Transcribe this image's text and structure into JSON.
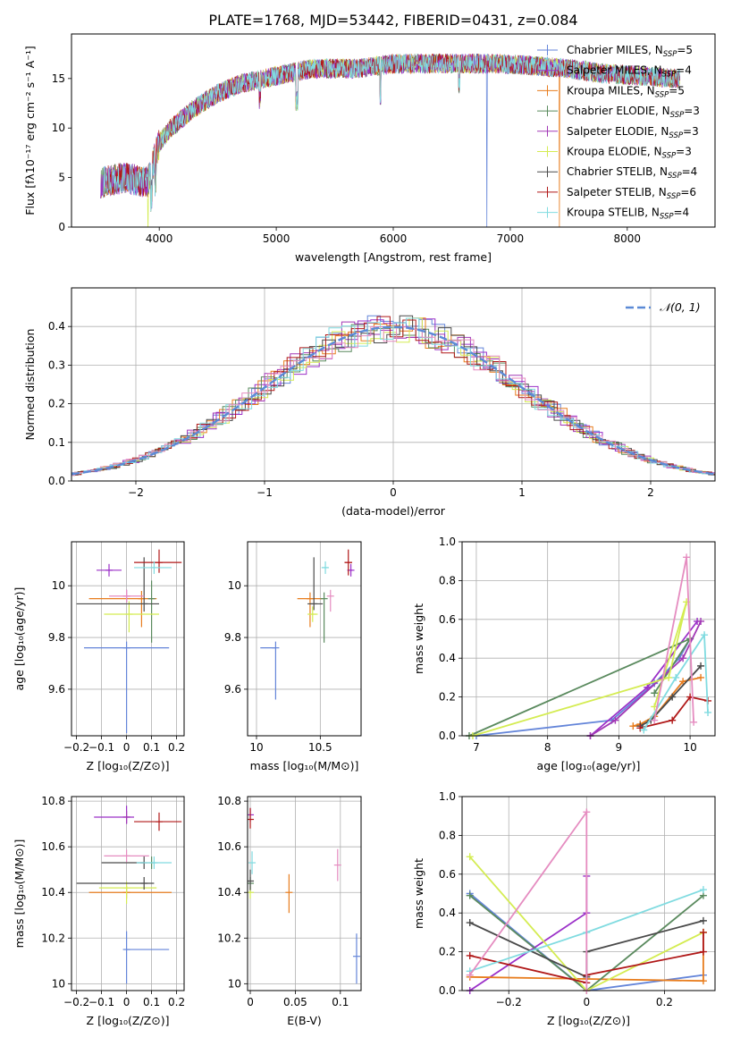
{
  "page_title": "PLATE=1768, MJD=53442, FIBERID=0431, z=0.084",
  "colors": {
    "Chabrier MILES": "#6485d9",
    "Salpeter MILES": "#9b30c8",
    "Kroupa MILES": "#e87d1e",
    "Chabrier ELODIE": "#5a8a5e",
    "Salpeter ELODIE": "#a238b5",
    "Kroupa ELODIE": "#d4ec52",
    "Chabrier STELIB": "#4a4a4a",
    "Salpeter STELIB": "#b01818",
    "Kroupa STELIB": "#80dbe0",
    "pink": "#e58cc0",
    "gaussian": "#5b8ad6"
  },
  "chart_data": [
    {
      "id": "spectrum",
      "type": "line",
      "title": "PLATE=1768, MJD=53442, FIBERID=0431, z=0.084",
      "xlabel": "wavelength [Angstrom, rest frame]",
      "ylabel": "Flux [fλ10⁻¹⁷ erg cm⁻² s⁻¹ A⁻¹]",
      "xlim": [
        3250,
        8750
      ],
      "ylim": [
        0,
        19.5
      ],
      "xticks": [
        4000,
        5000,
        6000,
        7000,
        8000
      ],
      "yticks": [
        0,
        5,
        10,
        15
      ],
      "legend_position": "right",
      "series": [
        {
          "name": "Chabrier MILES, N_SSP=5"
        },
        {
          "name": "Salpeter MILES, N_SSP=4"
        },
        {
          "name": "Kroupa MILES, N_SSP=5"
        },
        {
          "name": "Chabrier ELODIE, N_SSP=3"
        },
        {
          "name": "Salpeter ELODIE, N_SSP=3"
        },
        {
          "name": "Kroupa ELODIE, N_SSP=3"
        },
        {
          "name": "Chabrier STELIB, N_SSP=4"
        },
        {
          "name": "Salpeter STELIB, N_SSP=6"
        },
        {
          "name": "Kroupa STELIB, N_SSP=4"
        }
      ],
      "continuum": {
        "wavelength": [
          3500,
          3700,
          3900,
          4000,
          4100,
          4300,
          4500,
          4700,
          4900,
          5100,
          5300,
          5500,
          5700,
          6000,
          6300,
          6600,
          6900,
          7200,
          7500,
          7800,
          8100,
          8400
        ],
        "flux": [
          4.5,
          5.0,
          4.5,
          8.5,
          10.0,
          12.0,
          13.5,
          14.5,
          15.0,
          15.5,
          16.0,
          16.0,
          16.0,
          16.5,
          16.5,
          16.5,
          16.5,
          16.3,
          16.0,
          15.5,
          15.3,
          15.0
        ]
      }
    },
    {
      "id": "residuals",
      "type": "histogram",
      "xlabel": "(data-model)/error",
      "ylabel": "Normed distribution",
      "xlim": [
        -2.5,
        2.5
      ],
      "ylim": [
        0,
        0.5
      ],
      "xticks": [
        -2,
        -1,
        0,
        1,
        2
      ],
      "yticks": [
        0.0,
        0.1,
        0.2,
        0.3,
        0.4
      ],
      "legend": "𝒩(0, 1)",
      "legend_position": "top-right",
      "grid": true
    },
    {
      "id": "age_vs_Z",
      "type": "errorbar",
      "xlabel": "Z [log₁₀(Z/Z⊙)]",
      "ylabel": "age  [log₁₀(age/yr)]",
      "xlim": [
        -0.22,
        0.23
      ],
      "ylim": [
        9.42,
        10.17
      ],
      "xticks": [
        -0.2,
        -0.1,
        0.0,
        0.1,
        0.2
      ],
      "yticks": [
        9.6,
        9.8,
        10.0
      ],
      "grid": true,
      "points": [
        {
          "series": "Chabrier MILES",
          "x": 0.0,
          "y": 9.76,
          "xerr": [
            0.17,
            0.17
          ],
          "yerr": [
            0.33,
            0.02
          ]
        },
        {
          "series": "Salpeter MILES",
          "x": -0.07,
          "y": 10.06,
          "xerr": [
            0.05,
            0.05
          ],
          "yerr": [
            0.0,
            0.0
          ]
        },
        {
          "series": "Kroupa MILES",
          "x": 0.06,
          "y": 9.95,
          "xerr": [
            0.21,
            0.06
          ],
          "yerr": [
            0.11,
            0.03
          ]
        },
        {
          "series": "Chabrier ELODIE",
          "x": 0.1,
          "y": 9.95,
          "xerr": [
            0.0,
            0.0
          ],
          "yerr": [
            0.17,
            0.07
          ]
        },
        {
          "series": "Salpeter ELODIE",
          "x": 0.0,
          "y": 9.96,
          "xerr": [
            0.0,
            0.0
          ],
          "yerr": [
            0.0,
            0.0
          ]
        },
        {
          "series": "Kroupa ELODIE",
          "x": 0.01,
          "y": 9.89,
          "xerr": [
            0.1,
            0.12
          ],
          "yerr": [
            0.07,
            0.05
          ]
        },
        {
          "series": "Chabrier STELIB",
          "x": 0.07,
          "y": 9.93,
          "xerr": [
            0.27,
            0.06
          ],
          "yerr": [
            0.03,
            0.18
          ]
        },
        {
          "series": "Salpeter STELIB",
          "x": 0.13,
          "y": 10.09,
          "xerr": [
            0.1,
            0.09
          ],
          "yerr": [
            0.04,
            0.05
          ]
        },
        {
          "series": "Kroupa STELIB",
          "x": 0.11,
          "y": 10.07,
          "xerr": [
            0.08,
            0.07
          ],
          "yerr": [
            0.0,
            0.0
          ]
        },
        {
          "series": "pink",
          "x": 0.0,
          "y": 9.96,
          "xerr": [
            0.07,
            0.07
          ],
          "yerr": [
            0.0,
            0.0
          ]
        }
      ]
    },
    {
      "id": "age_vs_mass",
      "type": "errorbar",
      "xlabel": "mass [log₁₀(M/M⊙)]",
      "xlim": [
        9.93,
        10.82
      ],
      "ylim": [
        9.42,
        10.17
      ],
      "xticks": [
        10.0,
        10.5
      ],
      "yticks": [
        9.6,
        9.8,
        10.0
      ],
      "grid": true,
      "points": [
        {
          "series": "Chabrier MILES",
          "x": 10.15,
          "y": 9.76,
          "xerr": [
            0.12,
            0.0
          ],
          "yerr": [
            0.2,
            0.02
          ]
        },
        {
          "series": "Salpeter MILES",
          "x": 10.74,
          "y": 10.06,
          "xerr": [
            0.01,
            0.01
          ],
          "yerr": [
            0.0,
            0.0
          ]
        },
        {
          "series": "Kroupa MILES",
          "x": 10.42,
          "y": 9.95,
          "xerr": [
            0.1,
            0.1
          ],
          "yerr": [
            0.11,
            0.0
          ]
        },
        {
          "series": "Chabrier ELODIE",
          "x": 10.53,
          "y": 9.95,
          "xerr": [
            0.0,
            0.0
          ],
          "yerr": [
            0.17,
            0.0
          ]
        },
        {
          "series": "Kroupa ELODIE",
          "x": 10.44,
          "y": 9.89,
          "xerr": [
            0.04,
            0.04
          ],
          "yerr": [
            0.03,
            0.03
          ]
        },
        {
          "series": "Chabrier STELIB",
          "x": 10.45,
          "y": 9.93,
          "xerr": [
            0.05,
            0.07
          ],
          "yerr": [
            0.0,
            0.18
          ]
        },
        {
          "series": "Salpeter STELIB",
          "x": 10.72,
          "y": 10.09,
          "xerr": [
            0.03,
            0.03
          ],
          "yerr": [
            0.05,
            0.05
          ]
        },
        {
          "series": "Kroupa STELIB",
          "x": 10.54,
          "y": 10.07,
          "xerr": [
            0.03,
            0.02
          ],
          "yerr": [
            0.0,
            0.0
          ]
        },
        {
          "series": "pink",
          "x": 10.58,
          "y": 9.96,
          "xerr": [
            0.0,
            0.0
          ],
          "yerr": [
            0.06,
            0.0
          ]
        }
      ]
    },
    {
      "id": "weight_vs_age",
      "type": "line",
      "xlabel": "age  [log₁₀(age/yr)]",
      "ylabel": "mass weight",
      "xlim": [
        6.8,
        10.35
      ],
      "ylim": [
        0,
        1.0
      ],
      "xticks": [
        7,
        8,
        9,
        10
      ],
      "yticks": [
        0.0,
        0.2,
        0.4,
        0.6,
        0.8,
        1.0
      ],
      "grid": true,
      "series": [
        {
          "series": "Chabrier MILES",
          "x": [
            7.0,
            8.9,
            9.5,
            9.85,
            10.0
          ],
          "y": [
            0.0,
            0.08,
            0.27,
            0.4,
            0.5
          ]
        },
        {
          "series": "Salpeter MILES",
          "x": [
            8.6,
            9.4,
            10.1
          ],
          "y": [
            0.0,
            0.25,
            0.59
          ]
        },
        {
          "series": "Kroupa MILES",
          "x": [
            9.2,
            9.3,
            9.5,
            9.9,
            10.15
          ],
          "y": [
            0.05,
            0.06,
            0.1,
            0.28,
            0.3
          ]
        },
        {
          "series": "Chabrier ELODIE",
          "x": [
            6.9,
            10.0,
            9.5
          ],
          "y": [
            0.0,
            0.5,
            0.22
          ]
        },
        {
          "series": "Salpeter ELODIE",
          "x": [
            8.6,
            8.95,
            9.9,
            10.15
          ],
          "y": [
            0.0,
            0.08,
            0.4,
            0.59
          ]
        },
        {
          "series": "Kroupa ELODIE",
          "x": [
            6.95,
            9.7,
            9.95,
            9.5
          ],
          "y": [
            0.0,
            0.3,
            0.69,
            0.15
          ]
        },
        {
          "series": "Chabrier STELIB",
          "x": [
            9.3,
            9.45,
            9.75,
            10.15
          ],
          "y": [
            0.05,
            0.08,
            0.2,
            0.36
          ]
        },
        {
          "series": "Salpeter STELIB",
          "x": [
            9.3,
            9.75,
            10.0,
            10.25
          ],
          "y": [
            0.04,
            0.08,
            0.2,
            0.18
          ]
        },
        {
          "series": "Kroupa STELIB",
          "x": [
            9.35,
            9.8,
            10.2,
            10.25
          ],
          "y": [
            0.03,
            0.3,
            0.52,
            0.12
          ]
        },
        {
          "series": "pink",
          "x": [
            9.5,
            9.95,
            10.05
          ],
          "y": [
            0.08,
            0.92,
            0.07
          ]
        }
      ]
    },
    {
      "id": "mass_vs_Z",
      "type": "errorbar",
      "xlabel": "Z [log₁₀(Z/Z⊙)]",
      "ylabel": "mass [log₁₀(M/M⊙)]",
      "xlim": [
        -0.22,
        0.23
      ],
      "ylim": [
        9.97,
        10.82
      ],
      "xticks": [
        -0.2,
        -0.1,
        0.0,
        0.1,
        0.2
      ],
      "yticks": [
        10.0,
        10.2,
        10.4,
        10.6,
        10.8
      ],
      "grid": true,
      "points": [
        {
          "series": "Chabrier MILES",
          "x": 0.0,
          "y": 10.15,
          "xerr": [
            0.0,
            0.17
          ],
          "yerr": [
            0.15,
            0.08
          ]
        },
        {
          "series": "Salpeter MILES",
          "x": 0.0,
          "y": 10.73,
          "xerr": [
            0.13,
            0.03
          ],
          "yerr": [
            0.03,
            0.05
          ]
        },
        {
          "series": "Kroupa MILES",
          "x": 0.0,
          "y": 10.4,
          "xerr": [
            0.15,
            0.18
          ],
          "yerr": [
            0.0,
            0.0
          ]
        },
        {
          "series": "Chabrier ELODIE",
          "x": 0.1,
          "y": 10.53,
          "xerr": [
            0.0,
            0.0
          ],
          "yerr": [
            0.0,
            0.0
          ]
        },
        {
          "series": "Salpeter ELODIE",
          "x": 0.0,
          "y": 10.73,
          "xerr": [
            0.0,
            0.0
          ],
          "yerr": [
            0.0,
            0.0
          ]
        },
        {
          "series": "Kroupa ELODIE",
          "x": 0.0,
          "y": 10.42,
          "xerr": [
            0.11,
            0.12
          ],
          "yerr": [
            0.07,
            0.0
          ]
        },
        {
          "series": "Chabrier STELIB",
          "x": 0.07,
          "y": 10.44,
          "xerr": [
            0.27,
            0.04
          ],
          "yerr": [
            0.0,
            0.0
          ]
        },
        {
          "series": "Chabrier STELIB",
          "x": 0.07,
          "y": 10.53,
          "xerr": [
            0.17,
            0.0
          ],
          "yerr": [
            0.0,
            0.0
          ]
        },
        {
          "series": "Salpeter STELIB",
          "x": 0.13,
          "y": 10.71,
          "xerr": [
            0.1,
            0.09
          ],
          "yerr": [
            0.04,
            0.04
          ]
        },
        {
          "series": "Kroupa STELIB",
          "x": 0.11,
          "y": 10.53,
          "xerr": [
            0.07,
            0.07
          ],
          "yerr": [
            0.0,
            0.0
          ]
        },
        {
          "series": "pink",
          "x": 0.0,
          "y": 10.56,
          "xerr": [
            0.09,
            0.09
          ],
          "yerr": [
            0.0,
            0.0
          ]
        }
      ]
    },
    {
      "id": "mass_vs_ebv",
      "type": "errorbar",
      "xlabel": "E(B-V)",
      "xlim": [
        -0.003,
        0.123
      ],
      "ylim": [
        9.97,
        10.82
      ],
      "xticks": [
        0.0,
        0.05,
        0.1
      ],
      "yticks": [
        10.0,
        10.2,
        10.4,
        10.6,
        10.8
      ],
      "grid": true,
      "points": [
        {
          "series": "Chabrier MILES",
          "x": 0.118,
          "y": 10.12,
          "xerr": [
            0.0,
            0.0
          ],
          "yerr": [
            0.12,
            0.1
          ]
        },
        {
          "series": "Salpeter MILES",
          "x": 0.0,
          "y": 10.74,
          "xerr": [
            0.0,
            0.0
          ],
          "yerr": [
            0.03,
            0.03
          ]
        },
        {
          "series": "Kroupa MILES",
          "x": 0.043,
          "y": 10.4,
          "xerr": [
            0.0,
            0.0
          ],
          "yerr": [
            0.09,
            0.08
          ]
        },
        {
          "series": "Chabrier ELODIE",
          "x": 0.0,
          "y": 10.44,
          "xerr": [
            0.0,
            0.0
          ],
          "yerr": [
            0.04,
            0.0
          ]
        },
        {
          "series": "Kroupa ELODIE",
          "x": 0.0,
          "y": 10.4,
          "xerr": [
            0.0,
            0.0
          ],
          "yerr": [
            0.02,
            0.0
          ]
        },
        {
          "series": "Chabrier STELIB",
          "x": 0.0,
          "y": 10.45,
          "xerr": [
            0.0,
            0.0
          ],
          "yerr": [
            0.04,
            0.05
          ]
        },
        {
          "series": "Salpeter STELIB",
          "x": 0.0,
          "y": 10.72,
          "xerr": [
            0.0,
            0.0
          ],
          "yerr": [
            0.04,
            0.05
          ]
        },
        {
          "series": "Kroupa STELIB",
          "x": 0.002,
          "y": 10.53,
          "xerr": [
            0.0,
            0.0
          ],
          "yerr": [
            0.05,
            0.05
          ]
        },
        {
          "series": "pink",
          "x": 0.097,
          "y": 10.52,
          "xerr": [
            0.0,
            0.0
          ],
          "yerr": [
            0.07,
            0.07
          ]
        }
      ]
    },
    {
      "id": "weight_vs_Z",
      "type": "line",
      "xlabel": "Z [log₁₀(Z/Z⊙)]",
      "ylabel": "mass weight",
      "xlim": [
        -0.32,
        0.33
      ],
      "ylim": [
        0,
        1.0
      ],
      "xticks": [
        -0.2,
        0.0,
        0.2
      ],
      "yticks": [
        0.0,
        0.2,
        0.4,
        0.6,
        0.8,
        1.0
      ],
      "grid": true,
      "series": [
        {
          "series": "Chabrier MILES",
          "x": [
            -0.3,
            0.0,
            0.3
          ],
          "y": [
            0.5,
            0.0,
            0.08
          ]
        },
        {
          "series": "Salpeter MILES",
          "x": [
            -0.3,
            0.0,
            0.0
          ],
          "y": [
            0.0,
            0.4,
            0.59
          ]
        },
        {
          "series": "Kroupa MILES",
          "x": [
            -0.3,
            0.0,
            0.3,
            0.3
          ],
          "y": [
            0.07,
            0.06,
            0.05,
            0.3
          ]
        },
        {
          "series": "Chabrier ELODIE",
          "x": [
            -0.3,
            0.0,
            0.3
          ],
          "y": [
            0.49,
            0.0,
            0.49
          ]
        },
        {
          "series": "Kroupa ELODIE",
          "x": [
            -0.3,
            0.0,
            0.3
          ],
          "y": [
            0.69,
            0.0,
            0.3
          ]
        },
        {
          "series": "Chabrier STELIB",
          "x": [
            -0.3,
            0.0,
            0.0,
            0.3
          ],
          "y": [
            0.35,
            0.07,
            0.2,
            0.36
          ]
        },
        {
          "series": "Salpeter STELIB",
          "x": [
            -0.3,
            0.0,
            0.0,
            0.3,
            0.3
          ],
          "y": [
            0.18,
            0.04,
            0.08,
            0.2,
            0.3
          ]
        },
        {
          "series": "Kroupa STELIB",
          "x": [
            -0.3,
            0.0,
            0.3
          ],
          "y": [
            0.1,
            0.3,
            0.52
          ]
        },
        {
          "series": "pink",
          "x": [
            -0.3,
            0.0,
            0.0
          ],
          "y": [
            0.08,
            0.92,
            0.0
          ]
        }
      ]
    }
  ]
}
